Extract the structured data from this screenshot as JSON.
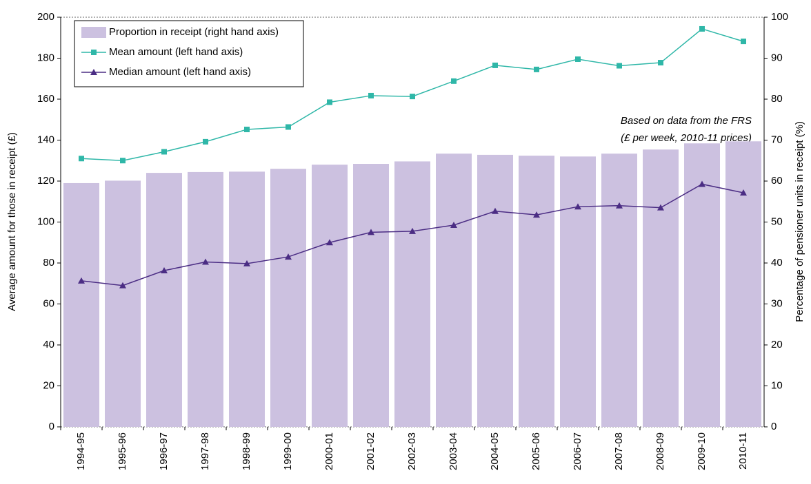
{
  "chart_data": {
    "type": "bar_line",
    "annotation": [
      "Based on data from the FRS",
      "(£ per week, 2010-11 prices)"
    ],
    "y_label": "Average amount for those in receipt (£)",
    "y2_label": "Percentage of pensioner units in receipt (%)",
    "categories": [
      "1994-95",
      "1995-96",
      "1996-97",
      "1997-98",
      "1998-99",
      "1999-00",
      "2000-01",
      "2001-02",
      "2002-03",
      "2003-04",
      "2004-05",
      "2005-06",
      "2006-07",
      "2007-08",
      "2008-09",
      "2009-10",
      "2010-11"
    ],
    "series": [
      {
        "name": "Proportion in receipt (right hand axis)",
        "type": "bar",
        "axis": "y2",
        "color": "#ccc1e0",
        "values": [
          59.5,
          60.1,
          62,
          62.2,
          62.3,
          63,
          64,
          64.2,
          64.8,
          66.7,
          66.4,
          66.2,
          66,
          66.7,
          67.7,
          69.2,
          69.7
        ]
      },
      {
        "name": "Mean amount (left hand axis)",
        "type": "line",
        "marker": "square",
        "color": "#2fb7a8",
        "values": [
          131,
          130,
          134.3,
          139.2,
          145.2,
          146.4,
          158.5,
          161.7,
          161.3,
          168.8,
          176.5,
          174.5,
          179.5,
          176.3,
          177.8,
          194.3,
          188.2
        ]
      },
      {
        "name": "Median amount (left hand axis)",
        "type": "line",
        "marker": "triangle",
        "color": "#4b2d84",
        "values": [
          71.3,
          69,
          76.3,
          80.5,
          79.7,
          83,
          90,
          95,
          95.5,
          98.5,
          105.3,
          103.5,
          107.5,
          108,
          107,
          118.5,
          114.3
        ]
      }
    ],
    "ylim": [
      0,
      200
    ],
    "yticks": [
      0,
      20,
      40,
      60,
      80,
      100,
      120,
      140,
      160,
      180,
      200
    ],
    "y2lim": [
      0,
      100
    ],
    "y2ticks": [
      0,
      10,
      20,
      30,
      40,
      50,
      60,
      70,
      80,
      90,
      100
    ]
  }
}
